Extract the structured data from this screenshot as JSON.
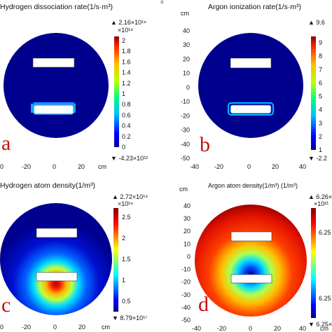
{
  "chart_data": [
    {
      "type": "heatmap",
      "letter": "a",
      "title": "Hydrogen dissociation rate(1/s·m³)",
      "unit": "cm",
      "xticks": [
        "0",
        "-20",
        "0",
        "20",
        "cm"
      ],
      "colorbar": {
        "max_label": "▲ 2.16×10¹⁸",
        "exp_label": "×10¹⁸",
        "min_label": "▼ -4.23×10¹²",
        "ticks": [
          "2",
          "1.8",
          "1.6",
          "1.4",
          "1.2",
          "1",
          "0.8",
          "0.6",
          "0.4",
          "0.2",
          "0"
        ],
        "colormap": "rainbow"
      },
      "field": "hot spots at the edges of the lower electrode, near zero elsewhere"
    },
    {
      "type": "heatmap",
      "letter": "b",
      "title": "Argon ionization rate(1/s·m³)",
      "unit": "cm",
      "xticks": [
        "-40",
        "-20",
        "0",
        "20",
        "40"
      ],
      "yticks": [
        "40",
        "30",
        "20",
        "10",
        "0",
        "-10",
        "-20",
        "-30",
        "-40",
        "-50"
      ],
      "colorbar": {
        "max_label": "▲ 9.6",
        "min_label": "▼ -2.2",
        "ticks": [
          "9",
          "8",
          "7",
          "6",
          "5",
          "4",
          "3",
          "2",
          "1"
        ],
        "colormap": "rainbow"
      },
      "field": "hot spots around the lower electrode edges, near zero elsewhere"
    },
    {
      "type": "heatmap",
      "letter": "c",
      "title": "Hydrogen atom density(1/m³)",
      "xticks": [
        "0",
        "-20",
        "0",
        "20",
        "cm"
      ],
      "colorbar": {
        "max_label": "▲ 2.72×10¹⁹",
        "exp_label": "×10¹⁹",
        "min_label": "▼ 8.79×10¹⁷",
        "ticks": [
          "2.5",
          "2",
          "1.5",
          "1",
          "0.5"
        ],
        "colormap": "jet"
      },
      "field": "peak just above the lower electrode, decaying outward"
    },
    {
      "type": "heatmap",
      "letter": "d",
      "title": "Argon atom density(1/m³) (1/m³)",
      "unit": "cm",
      "xticks": [
        "-40",
        "-20",
        "0",
        "20",
        "40",
        "cm"
      ],
      "yticks": [
        "40",
        "30",
        "20",
        "10",
        "0",
        "-10",
        "-20",
        "-30",
        "-40",
        "-50"
      ],
      "colorbar": {
        "max_label": "▲ 6.26×10²¹",
        "exp_label": "×10²¹",
        "min_label": "▼ 6.25×10²¹",
        "ticks": [
          "6.25",
          "6.25"
        ],
        "colormap": "jet"
      },
      "field": "minimum just above the lower electrode, maximum near the outer wall"
    }
  ],
  "colors": {
    "deep_blue": "#00008f",
    "electrode": "#ffffff",
    "electrode_edge": "#333333"
  }
}
